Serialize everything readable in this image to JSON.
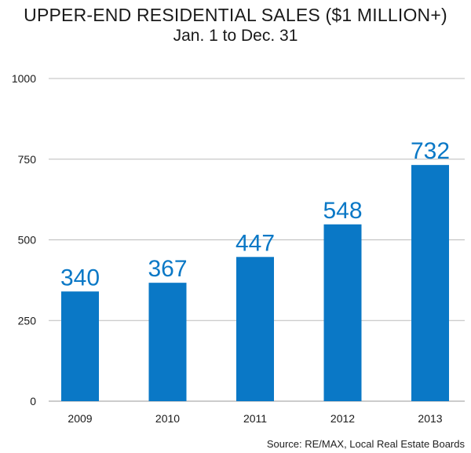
{
  "chart_data": {
    "type": "bar",
    "title": "UPPER-END RESIDENTIAL SALES ($1 MILLION+)",
    "subtitle": "Jan. 1 to Dec. 31",
    "categories": [
      "2009",
      "2010",
      "2011",
      "2012",
      "2013"
    ],
    "values": [
      340,
      367,
      447,
      548,
      732
    ],
    "data_labels": [
      "340",
      "367",
      "447",
      "548",
      "732"
    ],
    "xlabel": "",
    "ylabel": "",
    "ylim": [
      0,
      1000
    ],
    "yticks": [
      0,
      250,
      500,
      750,
      1000
    ],
    "ytick_labels": [
      "0",
      "250",
      "500",
      "750",
      "1000"
    ],
    "grid": true,
    "source": "Source: RE/MAX, Local Real Estate Boards",
    "colors": {
      "bar": "#0a78c6",
      "label": "#0a78c6",
      "grid": "#bcbcbc"
    }
  }
}
